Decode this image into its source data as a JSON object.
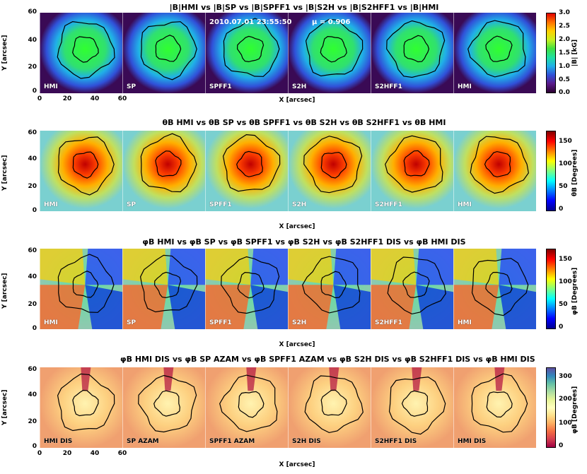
{
  "chart_data": [
    {
      "type": "heatmap",
      "title": "|B|HMI vs |B|SP vs |B|SPFF1 vs |B|S2H vs |B|S2HFF1 vs |B|HMI",
      "annotations": [
        "2010.07.01  23:55:50",
        "μ = 0.906"
      ],
      "panels": [
        "HMI",
        "SP",
        "SPFF1",
        "S2H",
        "S2HFF1",
        "HMI"
      ],
      "xlabel": "X [arcsec]",
      "ylabel": "Y [arcsec]",
      "xticks": [
        "0",
        "20",
        "40",
        "60",
        "0",
        "20",
        "40",
        "60"
      ],
      "yticks": [
        "0",
        "20",
        "40",
        "60"
      ],
      "xlim": [
        0,
        60
      ],
      "ylim": [
        0,
        60
      ],
      "colorbar": {
        "label": "|B| [kG]",
        "ticks": [
          "0.0",
          "0.5",
          "1.0",
          "1.5",
          "2.0",
          "2.5",
          "3.0"
        ],
        "range": [
          0,
          3
        ],
        "colormap": "rainbow"
      },
      "center": [
        33,
        33
      ],
      "inner_contour_radius": 9
    },
    {
      "type": "heatmap",
      "title": "θB HMI vs θB SP vs θB SPFF1 vs θB S2H vs θB S2HFF1 vs θB HMI",
      "panels": [
        "HMI",
        "SP",
        "SPFF1",
        "S2H",
        "S2HFF1",
        "HMI"
      ],
      "xlabel": "X [arcsec]",
      "ylabel": "Y [arcsec]",
      "yticks": [
        "0",
        "20",
        "40",
        "60"
      ],
      "xlim": [
        0,
        60
      ],
      "ylim": [
        0,
        60
      ],
      "colorbar": {
        "label": "θB [Degrees]",
        "ticks": [
          "0",
          "50",
          "100",
          "150"
        ],
        "range": [
          0,
          180
        ],
        "colormap": "jet"
      },
      "center": [
        33,
        35
      ],
      "inner_contour_radius": 9,
      "outer_contour_radius": 20
    },
    {
      "type": "heatmap",
      "title": "φB HMI vs φB SP vs φB SPFF1 vs φB S2H vs φB S2HFF1 DIS vs φB HMI DIS",
      "panels": [
        "HMI",
        "SP",
        "SPFF1",
        "S2H",
        "S2HFF1",
        "HMI"
      ],
      "xlabel": "X [arcsec]",
      "ylabel": "Y [arcsec]",
      "yticks": [
        "0",
        "20",
        "40",
        "60"
      ],
      "xlim": [
        0,
        60
      ],
      "ylim": [
        0,
        60
      ],
      "colorbar": {
        "label": "φB [Degrees]",
        "ticks": [
          "0",
          "50",
          "100",
          "150"
        ],
        "range": [
          0,
          180
        ],
        "colormap": "jet"
      },
      "center": [
        33,
        33
      ],
      "inner_contour_radius": 9,
      "outer_contour_radius": 20
    },
    {
      "type": "heatmap",
      "title": "φB HMI DIS vs φB SP AZAM vs φB SPFF1 AZAM vs φB S2H DIS vs φB S2HFF1 DIS vs φB HMI DIS",
      "panels": [
        "HMI DIS",
        "SP AZAM",
        "SPFF1 AZAM",
        "S2H DIS",
        "S2HFF1 DIS",
        "HMI DIS"
      ],
      "xlabel": "X [arcsec]",
      "ylabel": "Y [arcsec]",
      "xticks": [
        "0",
        "20",
        "40",
        "60"
      ],
      "yticks": [
        "0",
        "20",
        "40",
        "60"
      ],
      "xlim": [
        0,
        60
      ],
      "ylim": [
        0,
        60
      ],
      "colorbar": {
        "label": "φB [Degrees]",
        "ticks": [
          "0",
          "100",
          "200",
          "300"
        ],
        "range": [
          0,
          360
        ],
        "colormap": "spectral"
      },
      "center": [
        33,
        33
      ],
      "inner_contour_radius": 9,
      "outer_contour_radius": 20
    }
  ]
}
